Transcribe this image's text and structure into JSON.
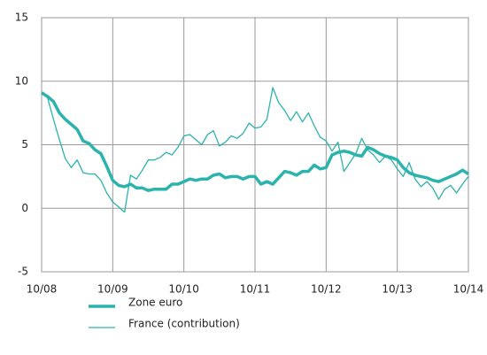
{
  "chart_data": {
    "type": "line",
    "categories": [
      "10/08",
      null,
      null,
      null,
      null,
      null,
      null,
      null,
      null,
      null,
      null,
      null,
      "10/09",
      null,
      null,
      null,
      null,
      null,
      null,
      null,
      null,
      null,
      null,
      null,
      "10/10",
      null,
      null,
      null,
      null,
      null,
      null,
      null,
      null,
      null,
      null,
      null,
      "10/11",
      null,
      null,
      null,
      null,
      null,
      null,
      null,
      null,
      null,
      null,
      null,
      "10/12",
      null,
      null,
      null,
      null,
      null,
      null,
      null,
      null,
      null,
      null,
      null,
      "10/13",
      null,
      null,
      null,
      null,
      null,
      null,
      null,
      null,
      null,
      null,
      null,
      "10/14"
    ],
    "series": [
      {
        "name": "Zone euro",
        "color": "#2bb3ad",
        "width": 3.5,
        "values": [
          9.1,
          8.8,
          8.4,
          7.5,
          7.0,
          6.6,
          6.2,
          5.3,
          5.1,
          4.6,
          4.3,
          3.3,
          2.2,
          1.8,
          1.7,
          1.9,
          1.6,
          1.6,
          1.4,
          1.5,
          1.5,
          1.5,
          1.9,
          1.9,
          2.1,
          2.3,
          2.2,
          2.3,
          2.3,
          2.6,
          2.7,
          2.4,
          2.5,
          2.5,
          2.3,
          2.5,
          2.5,
          1.9,
          2.1,
          1.9,
          2.4,
          2.9,
          2.8,
          2.6,
          2.9,
          2.9,
          3.4,
          3.1,
          3.2,
          4.2,
          4.4,
          4.5,
          4.4,
          4.2,
          4.1,
          4.8,
          4.6,
          4.3,
          4.1,
          4.0,
          3.8,
          3.2,
          2.8,
          2.6,
          2.5,
          2.4,
          2.2,
          2.1,
          2.3,
          2.5,
          2.7,
          3.0,
          2.7
        ]
      },
      {
        "name": "France (contribution)",
        "color": "#2bb3ad",
        "width": 1.3,
        "values": [
          9.1,
          8.7,
          7.0,
          5.4,
          3.9,
          3.2,
          3.8,
          2.8,
          2.7,
          2.7,
          2.2,
          1.2,
          0.5,
          0.1,
          -0.3,
          2.6,
          2.3,
          3.0,
          3.8,
          3.8,
          4.0,
          4.4,
          4.2,
          4.8,
          5.7,
          5.8,
          5.4,
          5.0,
          5.8,
          6.1,
          4.9,
          5.2,
          5.7,
          5.5,
          5.9,
          6.7,
          6.3,
          6.4,
          7.0,
          9.5,
          8.3,
          7.7,
          6.9,
          7.6,
          6.8,
          7.5,
          6.5,
          5.6,
          5.3,
          4.5,
          5.2,
          2.9,
          3.6,
          4.3,
          5.5,
          4.6,
          4.2,
          3.6,
          4.1,
          3.8,
          3.1,
          2.5,
          3.6,
          2.3,
          1.7,
          2.1,
          1.6,
          0.7,
          1.5,
          1.8,
          1.2,
          1.9,
          2.5
        ]
      }
    ],
    "ylim": [
      -5,
      15
    ],
    "yticks": [
      15,
      10,
      5,
      0,
      -5
    ],
    "grid": true
  }
}
